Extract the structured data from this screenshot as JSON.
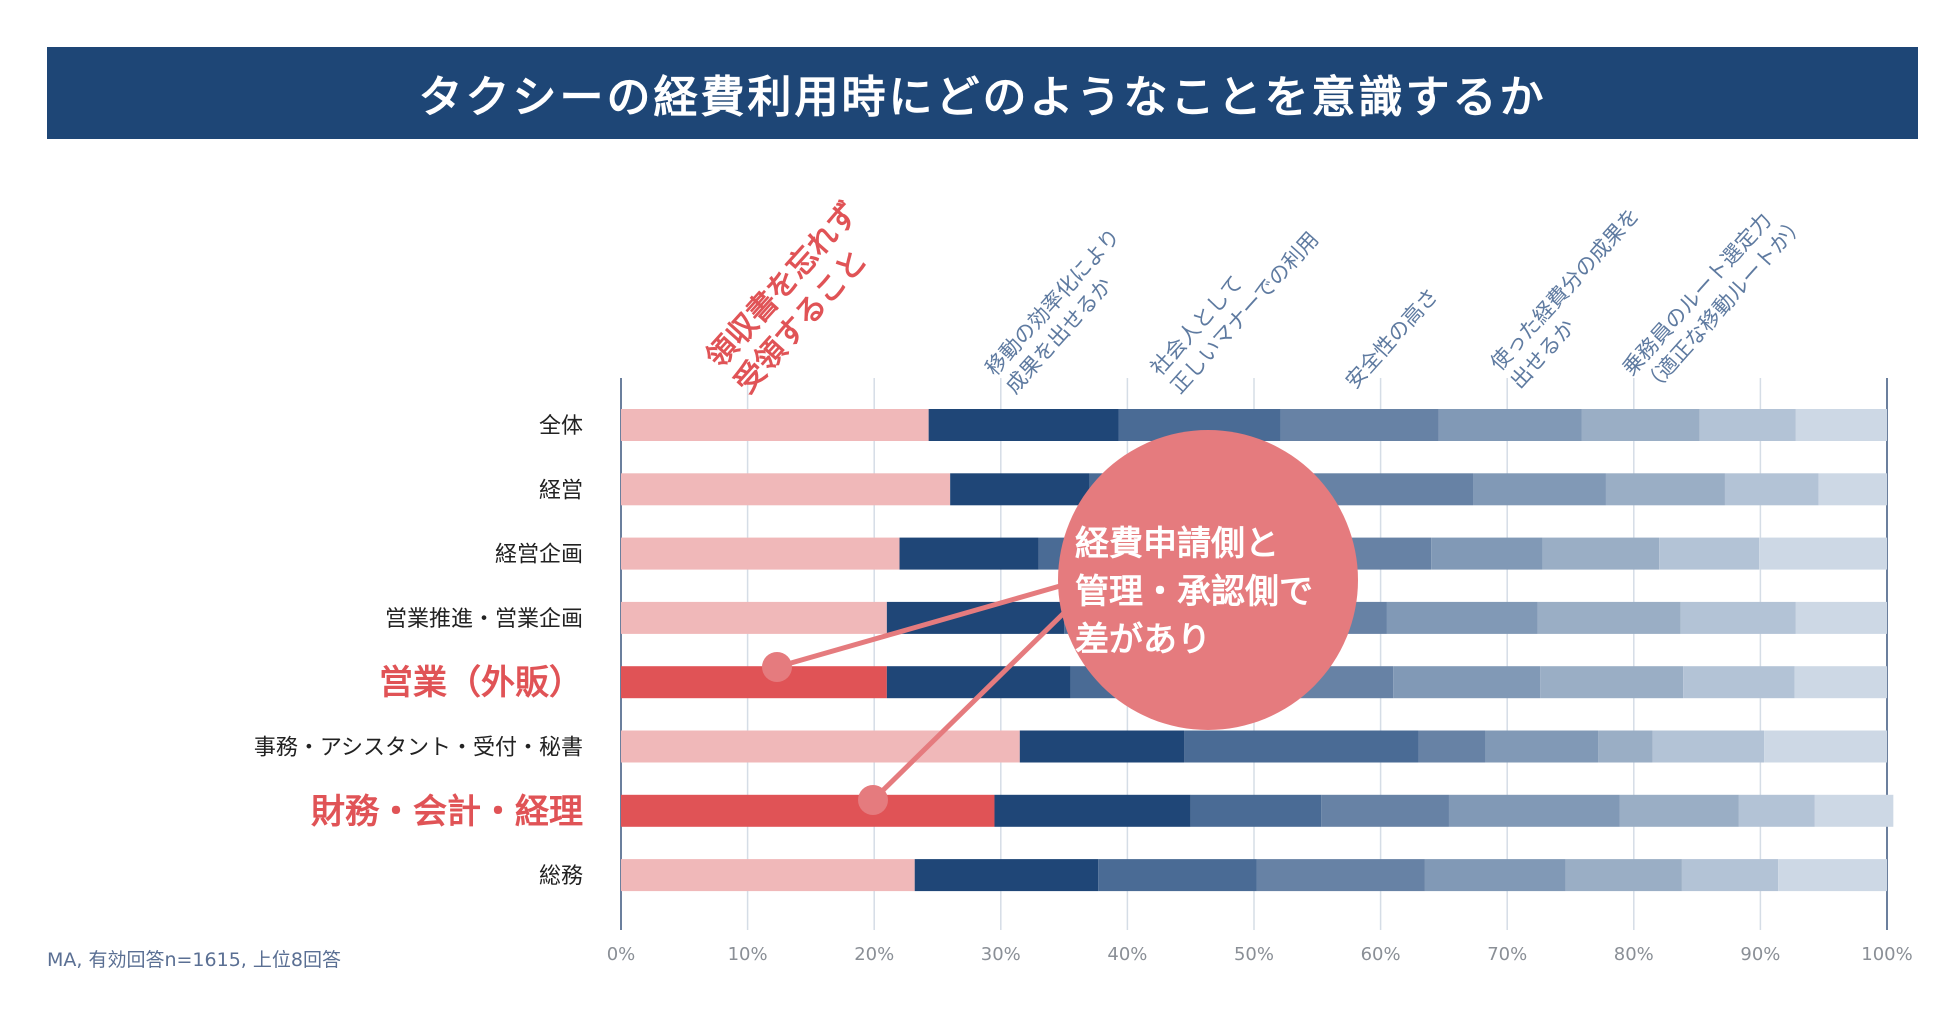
{
  "title": "タクシーの経費利用時にどのようなことを意識するか",
  "footnote": "MA, 有効回答n=1615, 上位8回答",
  "callout": {
    "lines": [
      "経費申請側と",
      "管理・承認側で",
      "差があり"
    ]
  },
  "colors": {
    "title_bg": "#1e4676",
    "category_colors": [
      "#f0b8b9",
      "#1f4677",
      "#4a6b95",
      "#6782a5",
      "#8199b6",
      "#9aaec5",
      "#b3c3d6",
      "#cdd8e5"
    ],
    "highlight_first": "#e05356",
    "highlight_label": "#e05356",
    "callout_bg": "#e57b7e"
  },
  "chart_data": {
    "type": "bar",
    "orientation": "horizontal",
    "stacked": true,
    "categories": [
      "全体",
      "経営",
      "経営企画",
      "営業推進・営業企画",
      "営業（外販）",
      "事務・アシスタント・受付・秘書",
      "財務・会計・経理",
      "総務"
    ],
    "highlighted_categories": [
      "営業（外販）",
      "財務・会計・経理"
    ],
    "series": [
      {
        "name": "領収書を忘れず受領すること",
        "values": [
          24.3,
          26.0,
          22.0,
          21.0,
          21.0,
          31.5,
          29.5,
          23.2
        ]
      },
      {
        "name": "移動の効率化により成果を出せるか",
        "values": [
          15.0,
          11.0,
          11.0,
          14.0,
          14.5,
          13.0,
          15.5,
          14.5
        ]
      },
      {
        "name": "社会人として正しいマナーでの利用",
        "values": [
          12.8,
          15.0,
          15.0,
          13.0,
          11.5,
          18.5,
          10.3,
          12.5
        ]
      },
      {
        "name": "安全性の高さ",
        "values": [
          12.5,
          15.3,
          16.0,
          12.5,
          14.0,
          5.3,
          10.1,
          13.3
        ]
      },
      {
        "name": "使った経費分の成果を出せるか",
        "values": [
          11.3,
          10.5,
          8.8,
          11.9,
          11.6,
          8.9,
          13.5,
          11.1
        ]
      },
      {
        "name": "乗務員のルート選定力（適正な移動ルートか）",
        "values": [
          9.3,
          9.4,
          9.2,
          11.3,
          11.3,
          4.3,
          9.4,
          9.2
        ]
      },
      {
        "name": "",
        "values": [
          7.6,
          7.4,
          7.9,
          9.1,
          8.8,
          8.8,
          6.0,
          7.6
        ]
      },
      {
        "name": "",
        "values": [
          7.2,
          5.4,
          10.1,
          7.2,
          7.3,
          9.7,
          6.2,
          8.6
        ]
      }
    ],
    "x_ticks": [
      "0%",
      "10%",
      "20%",
      "30%",
      "40%",
      "50%",
      "60%",
      "70%",
      "80%",
      "90%",
      "100%"
    ],
    "xlim": [
      0,
      100
    ],
    "grid": true,
    "legend": "rotated labels above bars",
    "annotation": "経費申請側と管理・承認側で差があり"
  }
}
